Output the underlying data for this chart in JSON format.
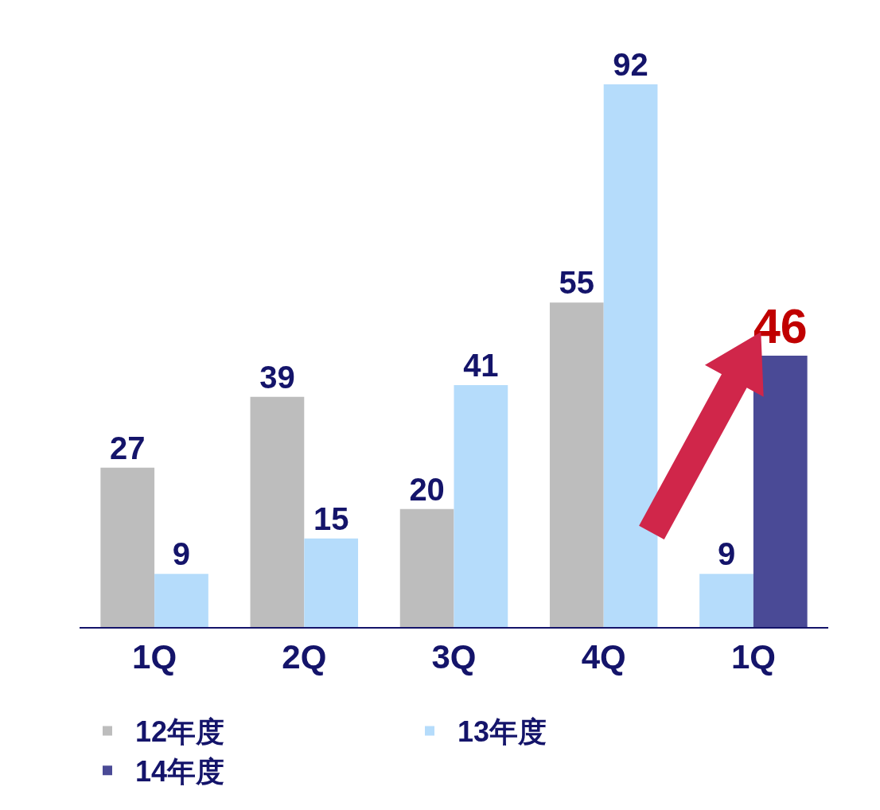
{
  "chart_data": {
    "type": "bar",
    "categories": [
      "1Q",
      "2Q",
      "3Q",
      "4Q",
      "1Q"
    ],
    "series": [
      {
        "name": "12年度",
        "color": "#bdbdbd",
        "values": [
          27,
          39,
          20,
          55,
          null
        ]
      },
      {
        "name": "13年度",
        "color": "#b5dcfb",
        "values": [
          9,
          15,
          41,
          92,
          9
        ]
      },
      {
        "name": "14年度",
        "color": "#4a4a96",
        "values": [
          null,
          null,
          null,
          null,
          46
        ]
      }
    ],
    "data_labels": true,
    "legend": "bottom"
  }
}
